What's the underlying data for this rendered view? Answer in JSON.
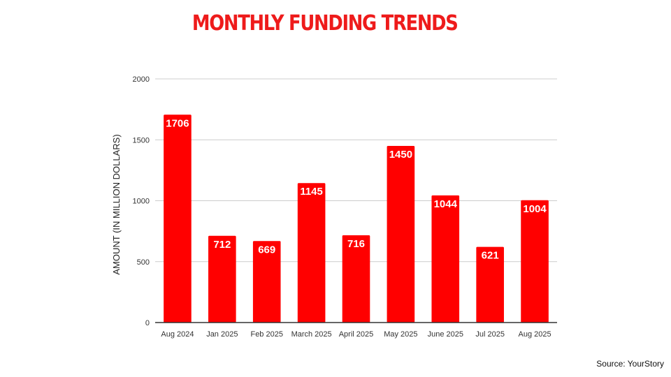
{
  "chart_data": {
    "type": "bar",
    "title": "MONTHLY FUNDING TRENDS",
    "xlabel": "",
    "ylabel": "AMOUNT (IN MILLION DOLLARS)",
    "categories": [
      "Aug 2024",
      "Jan 2025",
      "Feb 2025",
      "March 2025",
      "April 2025",
      "May 2025",
      "June 2025",
      "Jul 2025",
      "Aug 2025"
    ],
    "values": [
      1706,
      712,
      669,
      1145,
      716,
      1450,
      1044,
      621,
      1004
    ],
    "data_labels": [
      "1706",
      "712",
      "669",
      "1145",
      "716",
      "1450",
      "1044",
      "621",
      "1004"
    ],
    "ylim": [
      0,
      2000
    ],
    "yticks": [
      0,
      500,
      1000,
      1500,
      2000
    ],
    "ytick_labels": [
      "0",
      "500",
      "1000",
      "1500",
      "2000"
    ],
    "grid": true,
    "legend": "none",
    "bar_color": "#ff0000",
    "title_color": "#ee1b1b"
  },
  "source": "Source: YourStory"
}
